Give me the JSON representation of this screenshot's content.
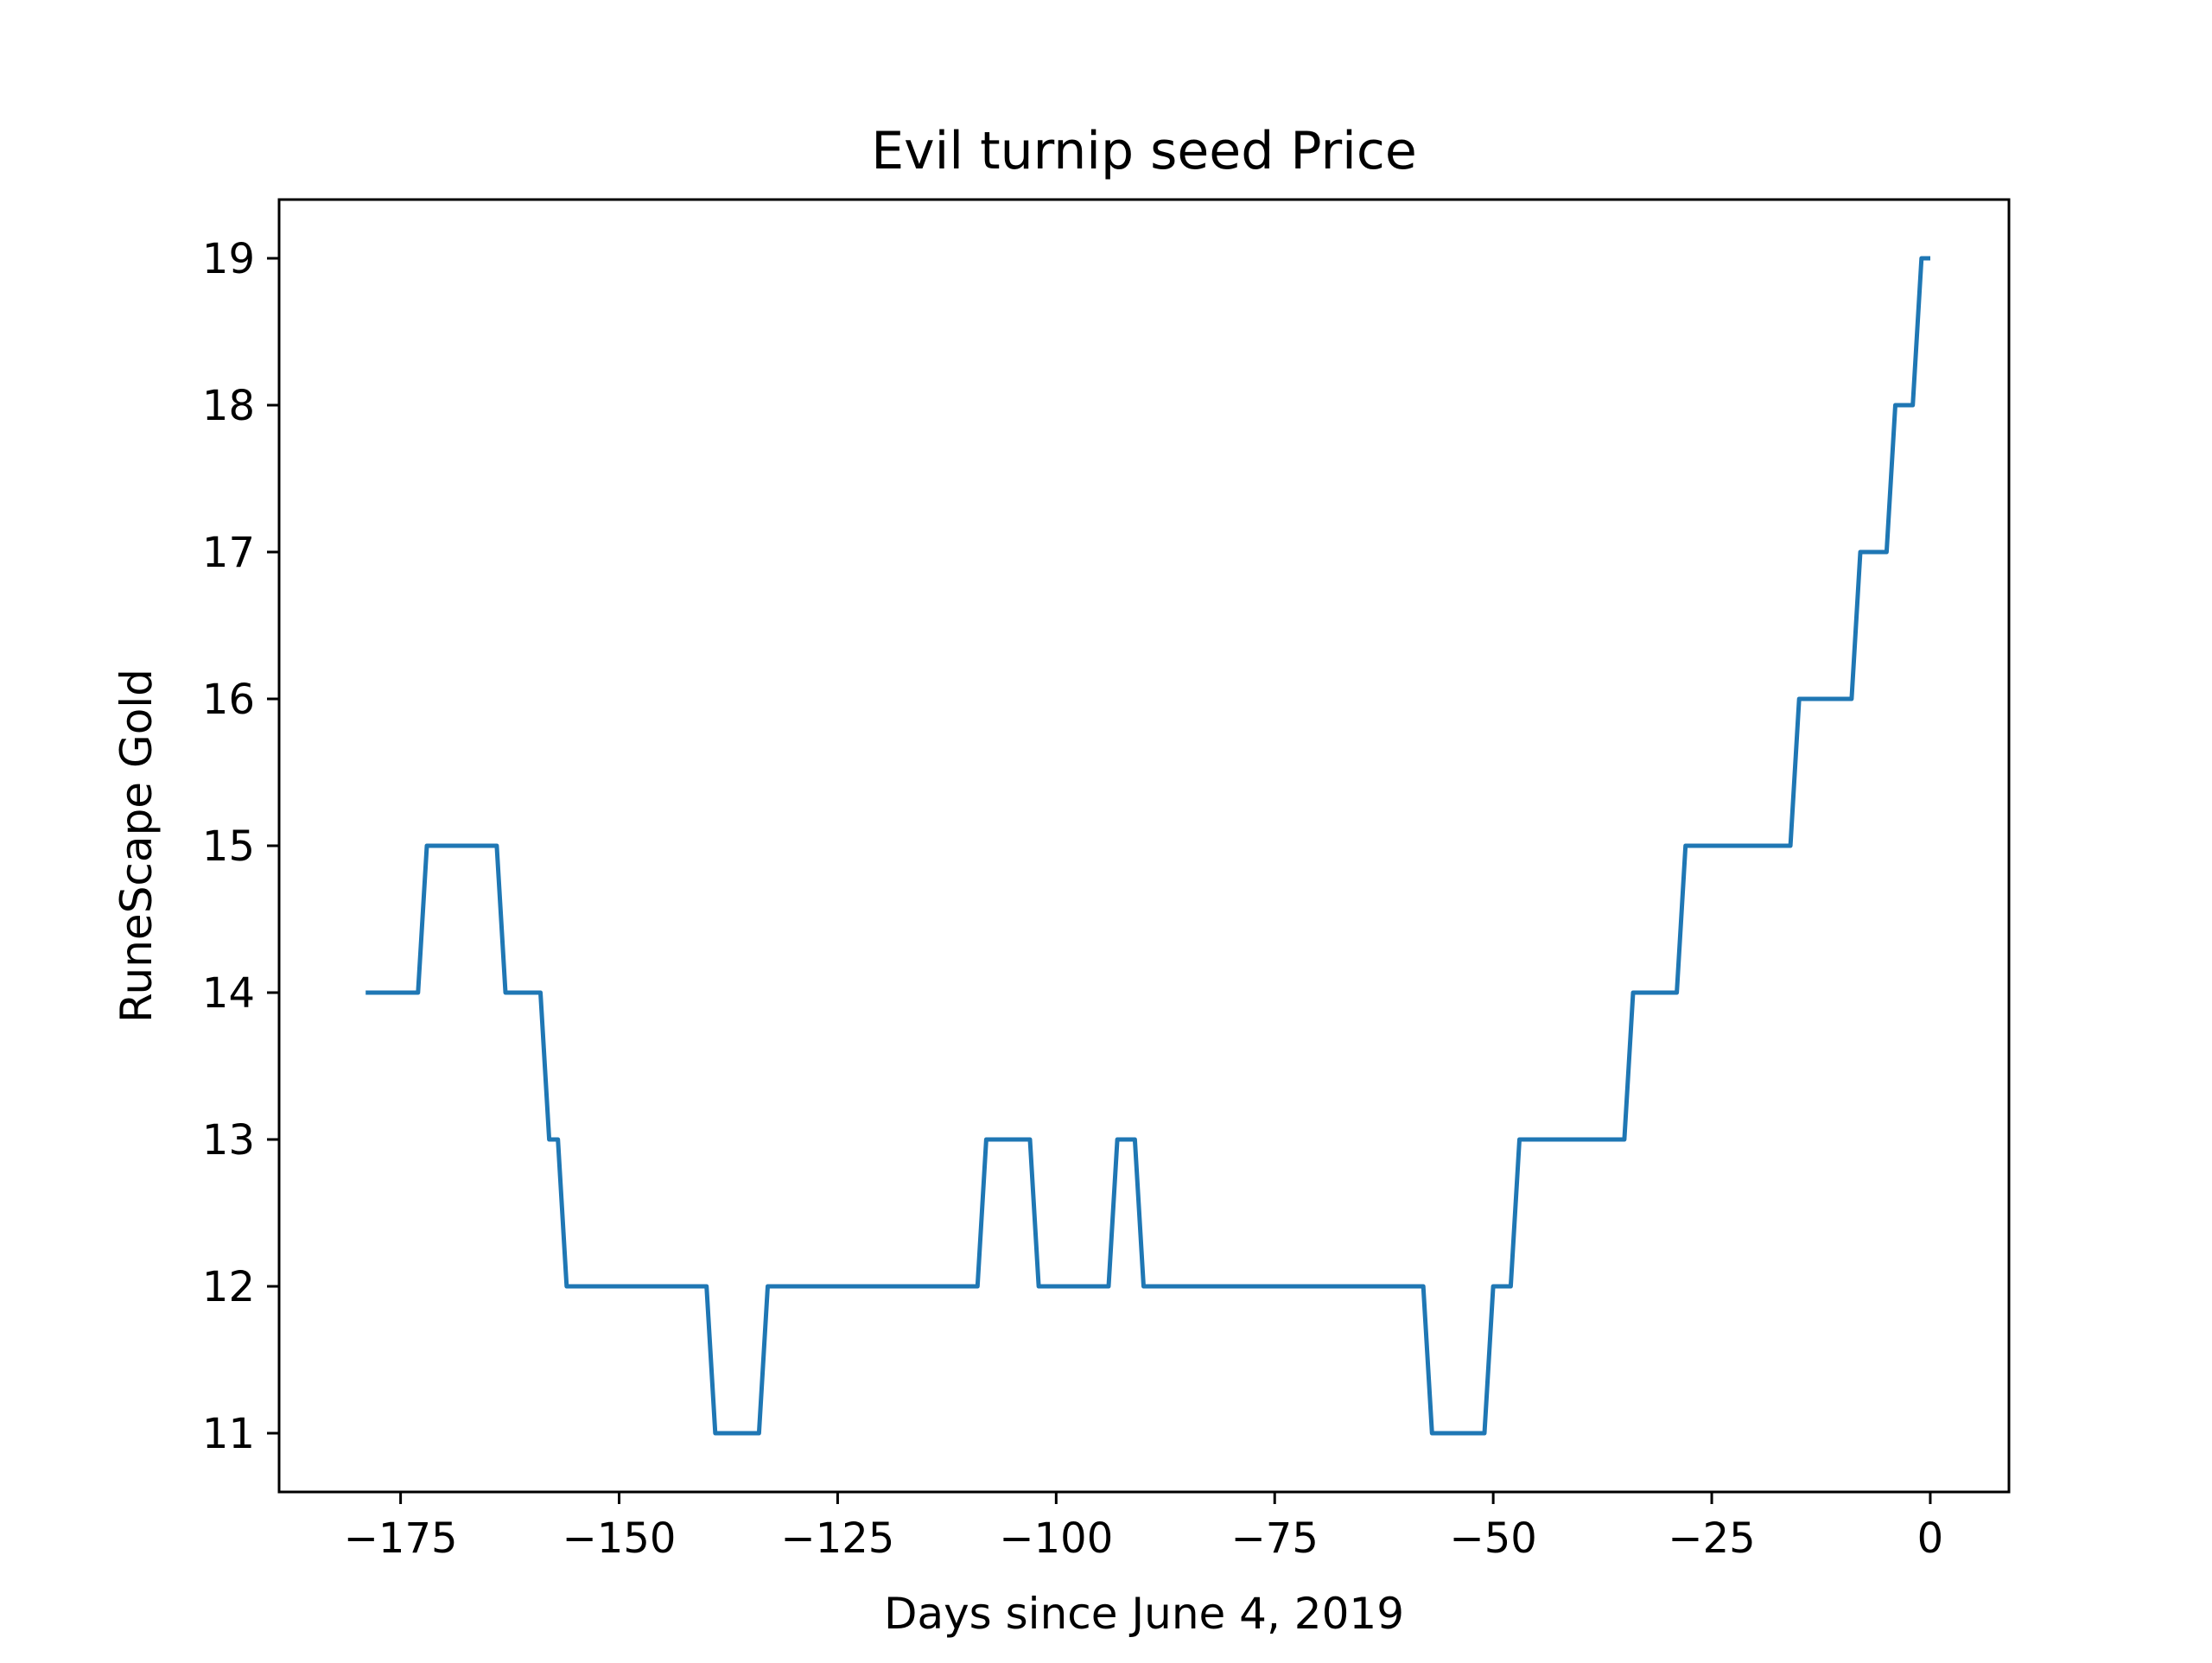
{
  "chart_data": {
    "type": "line",
    "title": "Evil turnip seed Price",
    "xlabel": "Days since June 4, 2019",
    "ylabel": "RuneScape Gold",
    "xlim": [
      -188.9,
      9
    ],
    "ylim": [
      10.6,
      19.4
    ],
    "xticks": [
      -175,
      -150,
      -125,
      -100,
      -75,
      -50,
      -25,
      0
    ],
    "xtick_labels": [
      "−175",
      "−150",
      "−125",
      "−100",
      "−75",
      "−50",
      "−25",
      "0"
    ],
    "yticks": [
      11,
      12,
      13,
      14,
      15,
      16,
      17,
      18,
      19
    ],
    "ytick_labels": [
      "11",
      "12",
      "13",
      "14",
      "15",
      "16",
      "17",
      "18",
      "19"
    ],
    "grid": false,
    "legend": "none",
    "series_color": "#1f77b4",
    "series": [
      {
        "x": [
          -179,
          -173,
          -172,
          -164,
          -163,
          -159,
          -158,
          -157,
          -156,
          -140,
          -139,
          -134,
          -133,
          -109,
          -108,
          -103,
          -102,
          -94,
          -93,
          -91,
          -90,
          -58,
          -57,
          -51,
          -50,
          -48,
          -47,
          -35,
          -34,
          -29,
          -28,
          -16,
          -15,
          -9,
          -8,
          -5,
          -4,
          -2,
          -1,
          0
        ],
        "y": [
          14,
          14,
          15,
          15,
          14,
          14,
          13,
          13,
          12,
          12,
          11,
          11,
          12,
          12,
          13,
          13,
          12,
          12,
          13,
          13,
          12,
          12,
          11,
          11,
          12,
          12,
          13,
          13,
          14,
          14,
          15,
          15,
          16,
          16,
          17,
          17,
          18,
          18,
          19,
          19
        ]
      }
    ]
  }
}
